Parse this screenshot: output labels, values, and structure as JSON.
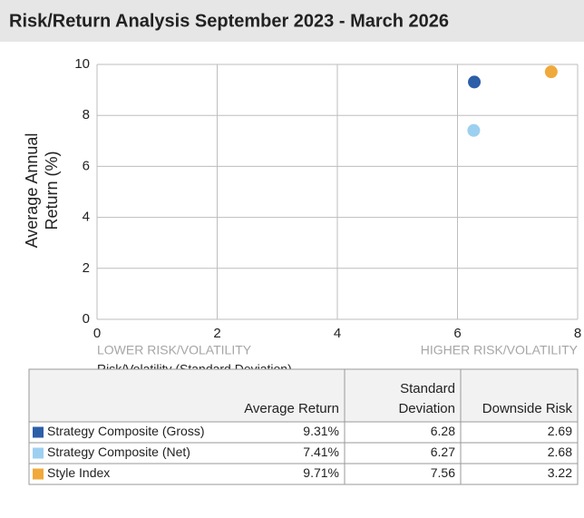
{
  "chart_data": {
    "type": "scatter",
    "title": "Risk/Return Analysis September 2023 - March 2026",
    "ylabel": [
      "Average Annual",
      "Return (%)"
    ],
    "xlabel": "Risk/Volatility (Standard Deviation)",
    "annotations": {
      "low": "LOWER RISK/VOLATILITY",
      "high": "HIGHER RISK/VOLATILITY"
    },
    "xlim": [
      0,
      8
    ],
    "xticks": [
      0,
      2,
      4,
      6,
      8
    ],
    "ylim": [
      0,
      10
    ],
    "yticks": [
      0,
      2,
      4,
      6,
      8,
      10
    ],
    "grid": true,
    "series": [
      {
        "name": "Strategy Composite (Gross)",
        "color": "#2d5ea8",
        "x": [
          6.28
        ],
        "values": [
          9.31
        ]
      },
      {
        "name": "Strategy Composite (Net)",
        "color": "#9dd0f0",
        "x": [
          6.27
        ],
        "values": [
          7.41
        ]
      },
      {
        "name": "Style Index",
        "color": "#f0a93b",
        "x": [
          7.56
        ],
        "values": [
          9.71
        ]
      }
    ]
  },
  "table": {
    "columns": [
      {
        "lines": [
          "Average Return"
        ]
      },
      {
        "lines": [
          "Standard",
          "Deviation"
        ]
      },
      {
        "lines": [
          "Downside Risk"
        ]
      }
    ],
    "rows": [
      [
        "Strategy Composite (Gross)",
        "9.31%",
        "6.28",
        "2.69"
      ],
      [
        "Strategy Composite (Net)",
        "7.41%",
        "6.27",
        "2.68"
      ],
      [
        "Style Index",
        "9.71%",
        "7.56",
        "3.22"
      ]
    ]
  }
}
